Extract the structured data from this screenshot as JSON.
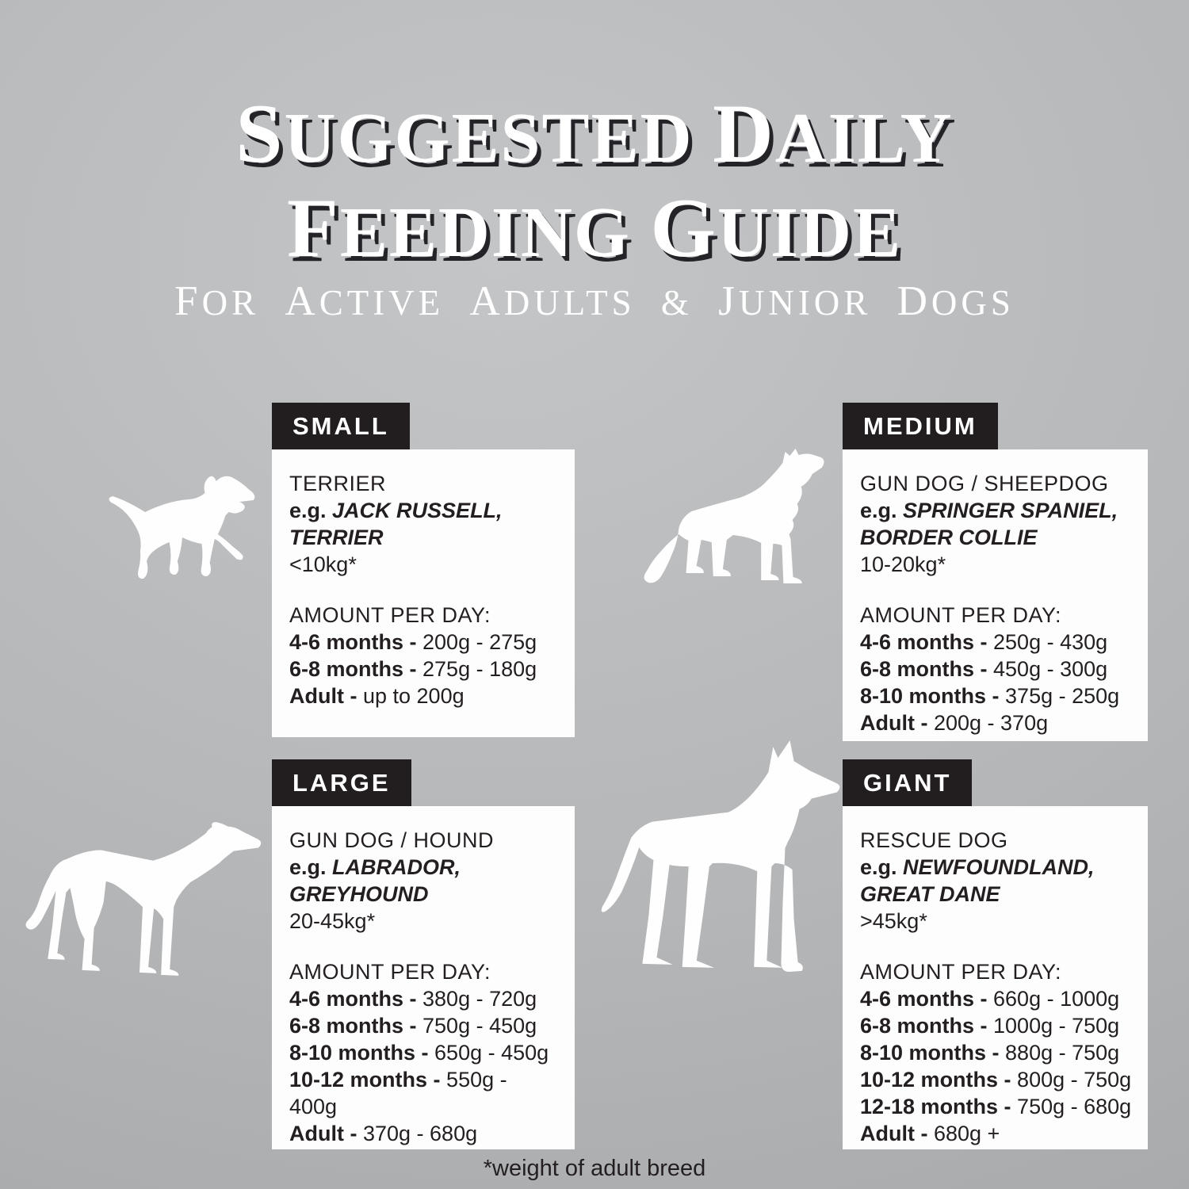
{
  "title": {
    "line1": "SUGGESTED DAILY",
    "line2": "FEEDING GUIDE",
    "subtitle": "FOR ACTIVE ADULTS & JUNIOR DOGS"
  },
  "footnote": "*weight of adult breed",
  "colors": {
    "background_light": "#c3c5c7",
    "background_mid": "#b4b6b8",
    "background_dark": "#a5a7a9",
    "badge": "#221e1f",
    "badge_text": "#ffffff",
    "card": "#fdfdfd",
    "text": "#231f20",
    "title_text": "#ffffff",
    "title_shadow": "#232328",
    "silhouette": "#fefefe"
  },
  "panels": [
    {
      "badge": "SMALL",
      "breed_type": "TERRIER",
      "example_prefix": "e.g.",
      "example_line1": "JACK RUSSELL,",
      "example_line2": "TERRIER",
      "weight": "<10kg*",
      "amount_heading": "AMOUNT PER DAY:",
      "dog": "terrier",
      "rows": [
        {
          "label": "4-6 months -",
          "value": "200g - 275g"
        },
        {
          "label": "6-8 months -",
          "value": "275g - 180g"
        },
        {
          "label": "Adult -",
          "value": "up to 200g"
        }
      ]
    },
    {
      "badge": "MEDIUM",
      "breed_type": "GUN DOG / SHEEPDOG",
      "example_prefix": "e.g.",
      "example_line1": "SPRINGER SPANIEL,",
      "example_line2": "BORDER COLLIE",
      "weight": "10-20kg*",
      "amount_heading": "AMOUNT PER DAY:",
      "dog": "border-collie",
      "rows": [
        {
          "label": "4-6 months -",
          "value": "250g - 430g"
        },
        {
          "label": "6-8 months -",
          "value": "450g - 300g"
        },
        {
          "label": "8-10 months -",
          "value": "375g - 250g"
        },
        {
          "label": "Adult -",
          "value": "200g - 370g"
        }
      ]
    },
    {
      "badge": "LARGE",
      "breed_type": "GUN DOG / HOUND",
      "example_prefix": "e.g.",
      "example_line1": "LABRADOR,",
      "example_line2": "GREYHOUND",
      "weight": "20-45kg*",
      "amount_heading": "AMOUNT PER DAY:",
      "dog": "greyhound",
      "rows": [
        {
          "label": "4-6 months -",
          "value": "380g - 720g"
        },
        {
          "label": "6-8 months -",
          "value": "750g - 450g"
        },
        {
          "label": "8-10 months -",
          "value": "650g - 450g"
        },
        {
          "label": "10-12 months -",
          "value": "550g - 400g"
        },
        {
          "label": "Adult -",
          "value": "370g - 680g"
        }
      ]
    },
    {
      "badge": "GIANT",
      "breed_type": "RESCUE DOG",
      "example_prefix": "e.g.",
      "example_line1": "NEWFOUNDLAND,",
      "example_line2": "GREAT DANE",
      "weight": ">45kg*",
      "amount_heading": "AMOUNT PER DAY:",
      "dog": "great-dane",
      "rows": [
        {
          "label": "4-6 months -",
          "value": "660g - 1000g"
        },
        {
          "label": "6-8 months -",
          "value": "1000g - 750g"
        },
        {
          "label": "8-10 months -",
          "value": "880g - 750g"
        },
        {
          "label": "10-12 months -",
          "value": "800g - 750g"
        },
        {
          "label": "12-18 months -",
          "value": "750g - 680g"
        },
        {
          "label": "Adult -",
          "value": "680g +"
        }
      ]
    }
  ]
}
